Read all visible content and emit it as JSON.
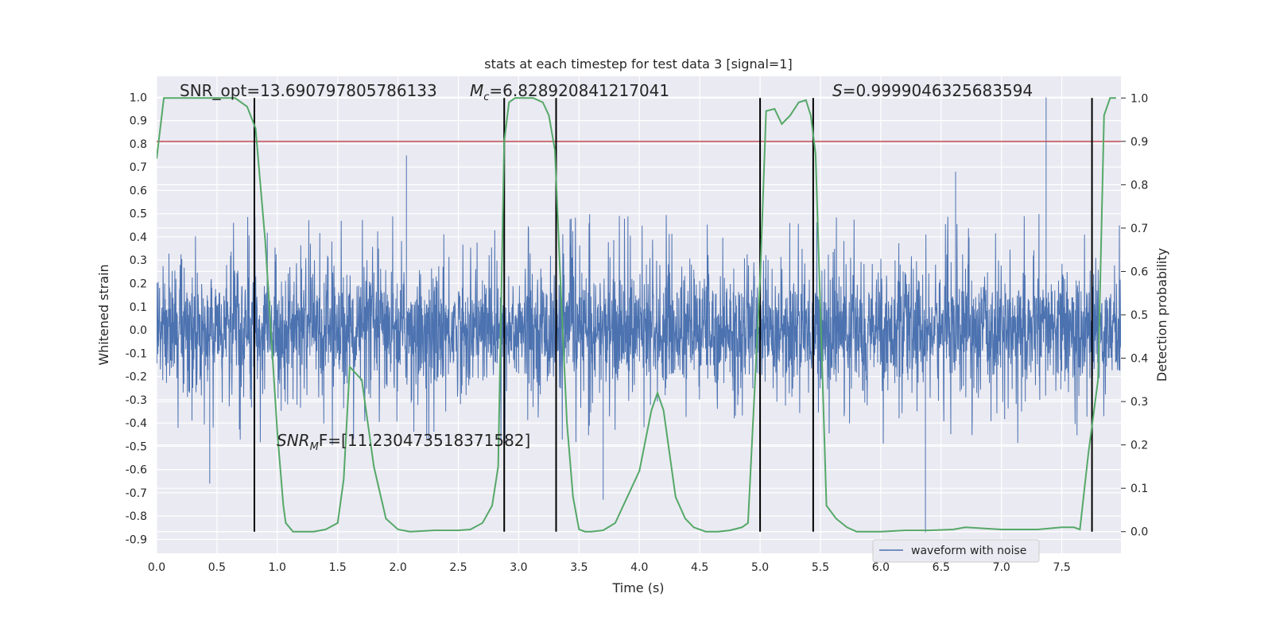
{
  "chart_data": {
    "type": "line",
    "title": "stats at each timestep for test data 3 [signal=1]",
    "xlabel": "Time (s)",
    "ylabel": "Whitened strain",
    "y2label": "Detection probability",
    "xlim": [
      0.0,
      7.99
    ],
    "ylim": [
      -0.96,
      1.09
    ],
    "y2lim": [
      -0.05,
      1.05
    ],
    "xticks": [
      "0.0",
      "0.5",
      "1.0",
      "1.5",
      "2.0",
      "2.5",
      "3.0",
      "3.5",
      "4.0",
      "4.5",
      "5.0",
      "5.5",
      "6.0",
      "6.5",
      "7.0",
      "7.5"
    ],
    "yticks": [
      "1.0",
      "0.9",
      "0.8",
      "0.7",
      "0.6",
      "0.5",
      "0.4",
      "0.3",
      "0.2",
      "0.1",
      "0.0",
      "-0.1",
      "-0.2",
      "-0.3",
      "-0.4",
      "-0.5",
      "-0.6",
      "-0.7",
      "-0.8",
      "-0.9"
    ],
    "y2ticks": [
      "1.0",
      "0.9",
      "0.8",
      "0.7",
      "0.6",
      "0.5",
      "0.4",
      "0.3",
      "0.2",
      "0.1",
      "0.0"
    ],
    "grid": true,
    "legend_position": "lower-right",
    "colors": {
      "background": "#eaeaf2",
      "grid": "#ffffff",
      "waveform": "#4c72b0",
      "probability": "#55a868",
      "threshold": "#c44e52",
      "markers": "#000000"
    },
    "annotations": {
      "snr_opt": "SNR_opt=13.690797805786133",
      "mc_symbol": "M",
      "mc_sub": "c",
      "mc_value": "=6.828920841217041",
      "s_symbol": "S",
      "s_value": "=0.9999046325683594",
      "snrmf_symbol": "SNR",
      "snrmf_sub": "M",
      "snrmf_value": "F=[11.230473518371582]"
    },
    "series": [
      {
        "name": "waveform with noise",
        "axis": "left",
        "style": "dense-noise",
        "core_amplitude": 0.25,
        "typical_peak": 0.5,
        "spikes": [
          {
            "x": 2.07,
            "y": 0.75
          },
          {
            "x": 7.37,
            "y": 1.0
          },
          {
            "x": 6.62,
            "y": 0.68
          },
          {
            "x": 6.37,
            "y": -0.87
          },
          {
            "x": 0.44,
            "y": -0.66
          },
          {
            "x": 3.7,
            "y": -0.73
          }
        ]
      },
      {
        "name": "",
        "axis": "right",
        "x": [
          0.0,
          0.06,
          0.15,
          0.3,
          0.5,
          0.65,
          0.75,
          0.82,
          0.9,
          0.95,
          1.0,
          1.05,
          1.07,
          1.13,
          1.2,
          1.3,
          1.4,
          1.5,
          1.55,
          1.6,
          1.7,
          1.8,
          1.9,
          2.0,
          2.1,
          2.3,
          2.5,
          2.6,
          2.7,
          2.78,
          2.83,
          2.88,
          2.92,
          2.97,
          3.05,
          3.12,
          3.2,
          3.25,
          3.3,
          3.35,
          3.4,
          3.45,
          3.5,
          3.55,
          3.6,
          3.7,
          3.8,
          3.9,
          4.0,
          4.1,
          4.15,
          4.2,
          4.25,
          4.3,
          4.38,
          4.45,
          4.55,
          4.65,
          4.75,
          4.85,
          4.9,
          4.95,
          5.0,
          5.05,
          5.12,
          5.18,
          5.25,
          5.32,
          5.38,
          5.42,
          5.46,
          5.55,
          5.63,
          5.72,
          5.8,
          6.0,
          6.2,
          6.4,
          6.6,
          6.7,
          7.0,
          7.3,
          7.5,
          7.6,
          7.65,
          7.72,
          7.8,
          7.85,
          7.9,
          7.95
        ],
        "values": [
          0.86,
          1.0,
          1.0,
          1.0,
          1.0,
          1.0,
          0.98,
          0.93,
          0.67,
          0.45,
          0.23,
          0.06,
          0.02,
          0.0,
          0.0,
          0.0,
          0.005,
          0.02,
          0.12,
          0.38,
          0.35,
          0.15,
          0.03,
          0.005,
          0.0,
          0.003,
          0.003,
          0.005,
          0.02,
          0.06,
          0.15,
          0.9,
          0.99,
          1.0,
          1.0,
          1.0,
          0.99,
          0.96,
          0.88,
          0.55,
          0.25,
          0.08,
          0.005,
          0.0,
          0.0,
          0.003,
          0.02,
          0.08,
          0.14,
          0.28,
          0.32,
          0.28,
          0.18,
          0.08,
          0.03,
          0.01,
          0.0,
          0.0,
          0.003,
          0.01,
          0.02,
          0.3,
          0.58,
          0.97,
          0.975,
          0.94,
          0.96,
          0.99,
          0.995,
          0.96,
          0.87,
          0.06,
          0.03,
          0.01,
          0.0,
          0.0,
          0.003,
          0.003,
          0.005,
          0.01,
          0.005,
          0.005,
          0.01,
          0.01,
          0.005,
          0.18,
          0.35,
          0.96,
          1.0,
          1.0
        ]
      }
    ],
    "threshold": {
      "axis": "right",
      "y": 0.9
    },
    "vertical_markers": [
      0.81,
      2.88,
      3.31,
      5.0,
      5.44,
      7.75
    ]
  }
}
